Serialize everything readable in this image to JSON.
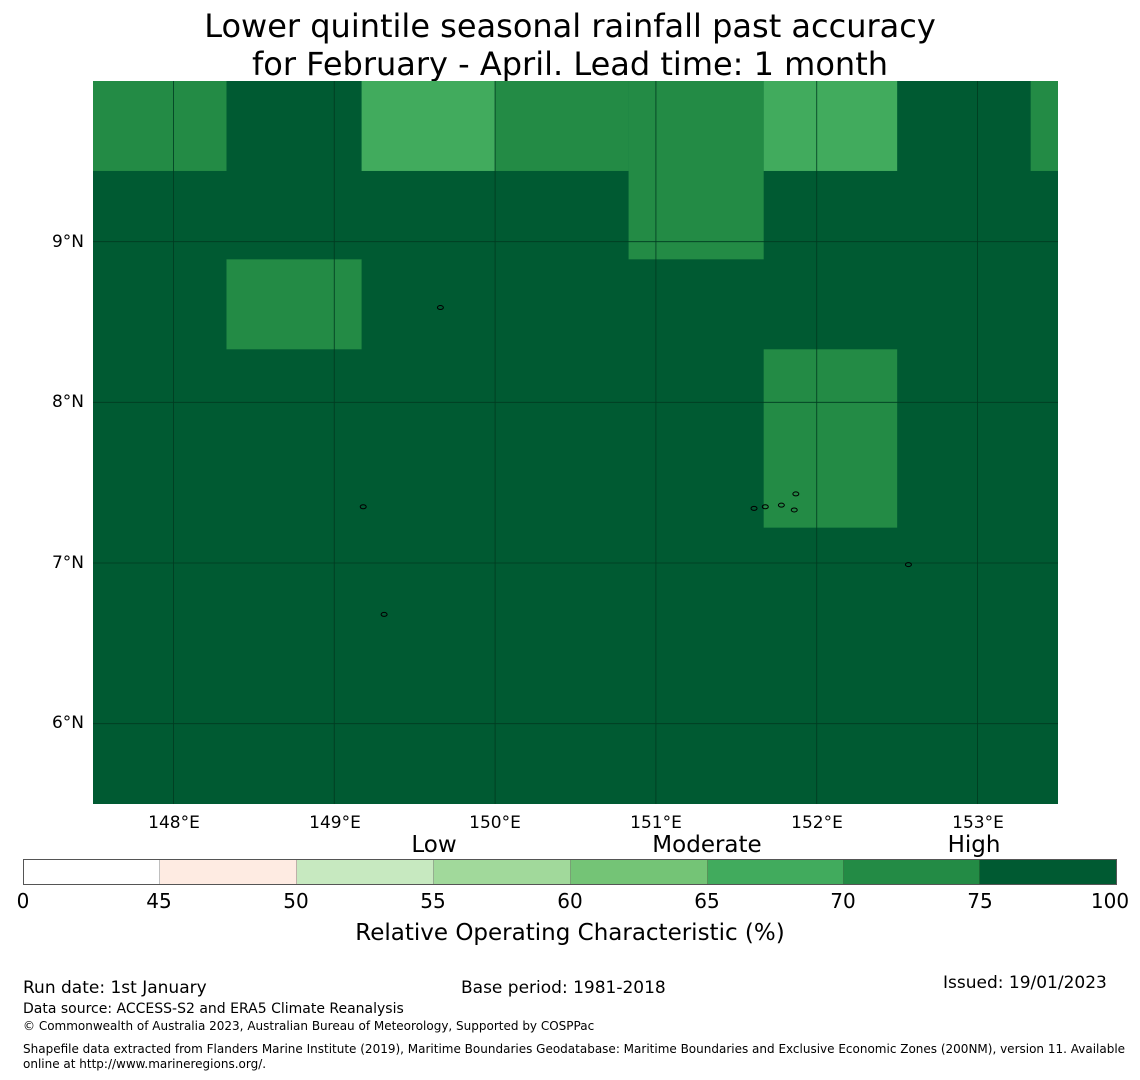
{
  "title": {
    "line1": "Lower quintile seasonal rainfall past accuracy",
    "line2": "for February - April. Lead time: 1 month"
  },
  "map": {
    "latitude_labels": [
      "9°N",
      "8°N",
      "7°N",
      "6°N"
    ],
    "longitude_labels": [
      "148°E",
      "149°E",
      "150°E",
      "151°E",
      "152°E",
      "153°E"
    ],
    "lat_range": [
      5.5,
      10.0
    ],
    "lon_range": [
      147.5,
      153.5
    ],
    "grid_lats": [
      9,
      8,
      7,
      6
    ],
    "grid_lons": [
      148,
      149,
      150,
      151,
      152,
      153
    ],
    "cells": [
      {
        "lat": [
          9.44,
          10.0
        ],
        "lon": [
          147.5,
          148.33
        ],
        "class": "70-75"
      },
      {
        "lat": [
          9.44,
          10.0
        ],
        "lon": [
          149.17,
          150.0
        ],
        "class": "65-70"
      },
      {
        "lat": [
          9.44,
          10.0
        ],
        "lon": [
          150.0,
          150.83
        ],
        "class": "70-75"
      },
      {
        "lat": [
          8.89,
          10.0
        ],
        "lon": [
          150.83,
          151.67
        ],
        "class": "70-75"
      },
      {
        "lat": [
          9.44,
          10.0
        ],
        "lon": [
          151.67,
          152.5
        ],
        "class": "65-70"
      },
      {
        "lat": [
          9.44,
          10.0
        ],
        "lon": [
          153.33,
          153.5
        ],
        "class": "70-75"
      },
      {
        "lat": [
          8.33,
          8.89
        ],
        "lon": [
          148.33,
          149.17
        ],
        "class": "70-75"
      },
      {
        "lat": [
          7.22,
          8.33
        ],
        "lon": [
          151.67,
          152.5
        ],
        "class": "70-75"
      }
    ],
    "islands": [
      {
        "lon": 149.66,
        "lat": 8.59
      },
      {
        "lon": 149.18,
        "lat": 7.35
      },
      {
        "lon": 149.31,
        "lat": 6.68
      },
      {
        "lon": 151.61,
        "lat": 7.34
      },
      {
        "lon": 151.68,
        "lat": 7.35
      },
      {
        "lon": 151.78,
        "lat": 7.36
      },
      {
        "lon": 151.87,
        "lat": 7.43
      },
      {
        "lon": 151.86,
        "lat": 7.33
      },
      {
        "lon": 152.57,
        "lat": 6.99
      }
    ]
  },
  "legend": {
    "categories": [
      "Low",
      "Moderate",
      "High"
    ],
    "ticks": [
      "0",
      "45",
      "50",
      "55",
      "60",
      "65",
      "70",
      "75",
      "100"
    ],
    "bins": [
      {
        "range": "0-45",
        "color": "#ffffff"
      },
      {
        "range": "45-50",
        "color": "#feebe2"
      },
      {
        "range": "50-55",
        "color": "#c7e9c0"
      },
      {
        "range": "55-60",
        "color": "#a1d99b"
      },
      {
        "range": "60-65",
        "color": "#74c476"
      },
      {
        "range": "65-70",
        "color": "#41ab5d"
      },
      {
        "range": "70-75",
        "color": "#238b45"
      },
      {
        "range": "75-100",
        "color": "#005a32"
      }
    ],
    "title": "Relative Operating Characteristic (%)"
  },
  "colors": {
    "background_cell": "#005a32",
    "65-70": "#41ab5d",
    "70-75": "#238b45",
    "gridline": "#003a20"
  },
  "footer": {
    "run_date": "Run date: 1st January",
    "base_period": "Base period: 1981-2018",
    "issued": "Issued: 19/01/2023",
    "data_source": "Data source: ACCESS-S2 and ERA5 Climate Reanalysis",
    "copyright": "© Commonwealth of Australia 2023, Australian Bureau of Meteorology, Supported by COSPPac",
    "shapefile_line1": "Shapefile data extracted from Flanders Marine Institute (2019), Maritime Boundaries Geodatabase: Maritime Boundaries and Exclusive Economic Zones (200NM), version 11. Available",
    "shapefile_line2": "online at http://www.marineregions.org/."
  }
}
